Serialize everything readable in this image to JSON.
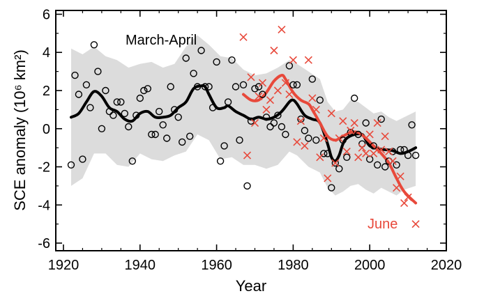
{
  "chart_data": {
    "type": "scatter",
    "xlabel": "Year",
    "ylabel": "SCE anomaly (10⁶ km²)",
    "xlim": [
      1918,
      2020
    ],
    "ylim": [
      -6.4,
      6.2
    ],
    "xticks": [
      1920,
      1940,
      1960,
      1980,
      2000,
      2020
    ],
    "xtick_labels": [
      "1920",
      "1940",
      "1960",
      "1980",
      "2000",
      "2020"
    ],
    "yticks": [
      -6,
      -4,
      -2,
      0,
      2,
      4,
      6
    ],
    "ytick_labels": [
      "-6",
      "-4",
      "-2",
      "0",
      "2",
      "4",
      "6"
    ],
    "grid": false,
    "legend": "none",
    "colors": {
      "march_april": "#000000",
      "june": "#e8493b",
      "band": "#dcdcdc"
    },
    "series": [
      {
        "name": "March-April",
        "marker": "circle",
        "points": [
          [
            1922,
            -1.9
          ],
          [
            1923,
            2.8
          ],
          [
            1924,
            1.8
          ],
          [
            1925,
            -1.6
          ],
          [
            1926,
            2.3
          ],
          [
            1927,
            1.1
          ],
          [
            1928,
            4.4
          ],
          [
            1929,
            3.0
          ],
          [
            1930,
            0.0
          ],
          [
            1931,
            2.0
          ],
          [
            1932,
            0.9
          ],
          [
            1933,
            0.7
          ],
          [
            1934,
            1.4
          ],
          [
            1935,
            1.4
          ],
          [
            1936,
            0.8
          ],
          [
            1937,
            0.1
          ],
          [
            1938,
            -1.7
          ],
          [
            1939,
            0.7
          ],
          [
            1940,
            1.6
          ],
          [
            1941,
            2.0
          ],
          [
            1942,
            2.1
          ],
          [
            1943,
            -0.3
          ],
          [
            1944,
            -0.3
          ],
          [
            1945,
            0.9
          ],
          [
            1946,
            0.2
          ],
          [
            1947,
            -0.5
          ],
          [
            1948,
            2.2
          ],
          [
            1949,
            1.0
          ],
          [
            1950,
            0.6
          ],
          [
            1951,
            -0.7
          ],
          [
            1952,
            3.7
          ],
          [
            1953,
            -0.4
          ],
          [
            1954,
            2.9
          ],
          [
            1955,
            2.2
          ],
          [
            1956,
            4.1
          ],
          [
            1957,
            2.2
          ],
          [
            1958,
            2.2
          ],
          [
            1959,
            1.1
          ],
          [
            1960,
            3.5
          ],
          [
            1961,
            -1.7
          ],
          [
            1962,
            -0.9
          ],
          [
            1963,
            1.4
          ],
          [
            1964,
            3.6
          ],
          [
            1965,
            2.2
          ],
          [
            1966,
            -0.6
          ],
          [
            1967,
            2.3
          ],
          [
            1968,
            -3.0
          ],
          [
            1969,
            0.4
          ],
          [
            1970,
            2.1
          ],
          [
            1971,
            2.2
          ],
          [
            1972,
            1.8
          ],
          [
            1973,
            0.6
          ],
          [
            1974,
            0.1
          ],
          [
            1975,
            0.3
          ],
          [
            1976,
            0.7
          ],
          [
            1977,
            0.1
          ],
          [
            1978,
            -0.3
          ],
          [
            1979,
            3.3
          ],
          [
            1980,
            2.3
          ],
          [
            1981,
            2.3
          ],
          [
            1982,
            0.5
          ],
          [
            1983,
            -0.1
          ],
          [
            1984,
            -0.5
          ],
          [
            1985,
            2.6
          ],
          [
            1986,
            -0.6
          ],
          [
            1987,
            1.5
          ],
          [
            1988,
            -1.3
          ],
          [
            1989,
            -1.3
          ],
          [
            1990,
            -3.1
          ],
          [
            1991,
            -1.8
          ],
          [
            1992,
            -2.1
          ],
          [
            1993,
            -0.6
          ],
          [
            1994,
            -1.5
          ],
          [
            1995,
            -0.2
          ],
          [
            1996,
            1.6
          ],
          [
            1997,
            -0.3
          ],
          [
            1998,
            -0.8
          ],
          [
            1999,
            0.3
          ],
          [
            2000,
            -1.6
          ],
          [
            2001,
            -0.9
          ],
          [
            2002,
            -1.9
          ],
          [
            2003,
            0.5
          ],
          [
            2004,
            -2.0
          ],
          [
            2005,
            -1.7
          ],
          [
            2006,
            -1.2
          ],
          [
            2007,
            -1.9
          ],
          [
            2008,
            -1.1
          ],
          [
            2009,
            -1.1
          ],
          [
            2010,
            -1.4
          ],
          [
            2011,
            0.2
          ],
          [
            2012,
            -1.4
          ]
        ],
        "smooth": [
          [
            1922,
            0.6
          ],
          [
            1924,
            0.8
          ],
          [
            1926,
            1.4
          ],
          [
            1928,
            1.95
          ],
          [
            1930,
            1.7
          ],
          [
            1932,
            1.1
          ],
          [
            1934,
            0.9
          ],
          [
            1936,
            0.5
          ],
          [
            1938,
            0.4
          ],
          [
            1940,
            0.8
          ],
          [
            1942,
            0.9
          ],
          [
            1944,
            0.6
          ],
          [
            1946,
            0.6
          ],
          [
            1948,
            0.7
          ],
          [
            1950,
            1.1
          ],
          [
            1952,
            1.4
          ],
          [
            1954,
            2.1
          ],
          [
            1956,
            2.25
          ],
          [
            1957,
            2.2
          ],
          [
            1958,
            1.8
          ],
          [
            1960,
            1.1
          ],
          [
            1962,
            1.1
          ],
          [
            1963,
            1.2
          ],
          [
            1965,
            0.9
          ],
          [
            1967,
            0.7
          ],
          [
            1969,
            0.5
          ],
          [
            1971,
            0.6
          ],
          [
            1973,
            0.5
          ],
          [
            1975,
            0.6
          ],
          [
            1977,
            0.9
          ],
          [
            1979,
            1.4
          ],
          [
            1980,
            1.5
          ],
          [
            1981,
            1.3
          ],
          [
            1983,
            0.7
          ],
          [
            1985,
            0.5
          ],
          [
            1987,
            0.3
          ],
          [
            1989,
            -0.8
          ],
          [
            1990,
            -1.5
          ],
          [
            1991,
            -1.7
          ],
          [
            1992,
            -1.4
          ],
          [
            1993,
            -0.8
          ],
          [
            1994,
            -0.5
          ],
          [
            1996,
            -0.3
          ],
          [
            1998,
            -0.3
          ],
          [
            1999,
            -0.6
          ],
          [
            2000,
            -0.9
          ],
          [
            2002,
            -1.05
          ],
          [
            2004,
            -1.1
          ],
          [
            2006,
            -1.15
          ],
          [
            2008,
            -1.3
          ],
          [
            2010,
            -1.2
          ],
          [
            2012,
            -1.0
          ]
        ],
        "band_upper": [
          [
            1922,
            4.2
          ],
          [
            1925,
            3.9
          ],
          [
            1928,
            4.3
          ],
          [
            1931,
            3.8
          ],
          [
            1934,
            3.6
          ],
          [
            1937,
            3.2
          ],
          [
            1940,
            3.4
          ],
          [
            1943,
            3.5
          ],
          [
            1946,
            3.2
          ],
          [
            1949,
            3.4
          ],
          [
            1952,
            4.3
          ],
          [
            1955,
            4.9
          ],
          [
            1958,
            4.4
          ],
          [
            1961,
            3.8
          ],
          [
            1964,
            3.7
          ],
          [
            1967,
            3.1
          ],
          [
            1970,
            2.8
          ],
          [
            1973,
            2.9
          ],
          [
            1976,
            3.2
          ],
          [
            1979,
            3.6
          ],
          [
            1981,
            3.4
          ],
          [
            1984,
            3.0
          ],
          [
            1987,
            2.6
          ],
          [
            1989,
            1.4
          ],
          [
            1991,
            0.9
          ],
          [
            1993,
            1.0
          ],
          [
            1995,
            1.5
          ],
          [
            1997,
            1.4
          ],
          [
            1999,
            1.1
          ],
          [
            2001,
            0.8
          ],
          [
            2003,
            0.9
          ],
          [
            2005,
            0.6
          ],
          [
            2007,
            0.4
          ],
          [
            2009,
            0.6
          ],
          [
            2012,
            0.9
          ]
        ],
        "band_lower": [
          [
            1922,
            -3.0
          ],
          [
            1925,
            -2.6
          ],
          [
            1928,
            -1.3
          ],
          [
            1931,
            -1.3
          ],
          [
            1934,
            -1.9
          ],
          [
            1937,
            -2.0
          ],
          [
            1940,
            -1.3
          ],
          [
            1943,
            -1.6
          ],
          [
            1946,
            -1.7
          ],
          [
            1949,
            -1.4
          ],
          [
            1952,
            -1.2
          ],
          [
            1955,
            -0.3
          ],
          [
            1958,
            -0.6
          ],
          [
            1961,
            -1.6
          ],
          [
            1964,
            -1.5
          ],
          [
            1967,
            -1.9
          ],
          [
            1970,
            -1.9
          ],
          [
            1973,
            -2.1
          ],
          [
            1976,
            -1.9
          ],
          [
            1979,
            -1.2
          ],
          [
            1981,
            -1.4
          ],
          [
            1984,
            -2.0
          ],
          [
            1987,
            -2.3
          ],
          [
            1989,
            -3.1
          ],
          [
            1991,
            -3.5
          ],
          [
            1993,
            -3.3
          ],
          [
            1995,
            -3.0
          ],
          [
            1997,
            -2.9
          ],
          [
            1999,
            -3.2
          ],
          [
            2001,
            -3.4
          ],
          [
            2003,
            -3.1
          ],
          [
            2005,
            -3.3
          ],
          [
            2007,
            -3.5
          ],
          [
            2009,
            -3.2
          ],
          [
            2012,
            -3.0
          ]
        ]
      },
      {
        "name": "June",
        "marker": "x",
        "points": [
          [
            1967,
            4.8
          ],
          [
            1968,
            -1.4
          ],
          [
            1969,
            2.7
          ],
          [
            1970,
            0.3
          ],
          [
            1971,
            1.7
          ],
          [
            1972,
            2.4
          ],
          [
            1973,
            1.0
          ],
          [
            1974,
            1.5
          ],
          [
            1975,
            4.1
          ],
          [
            1976,
            2.0
          ],
          [
            1977,
            5.2
          ],
          [
            1978,
            2.4
          ],
          [
            1979,
            1.8
          ],
          [
            1980,
            3.6
          ],
          [
            1981,
            -0.7
          ],
          [
            1982,
            0.4
          ],
          [
            1983,
            -0.9
          ],
          [
            1984,
            3.6
          ],
          [
            1985,
            1.6
          ],
          [
            1986,
            1.0
          ],
          [
            1987,
            -1.5
          ],
          [
            1988,
            -0.5
          ],
          [
            1989,
            -2.6
          ],
          [
            1990,
            0.8
          ],
          [
            1991,
            -1.8
          ],
          [
            1992,
            -0.5
          ],
          [
            1993,
            0.4
          ],
          [
            1994,
            -1.2
          ],
          [
            1995,
            -0.1
          ],
          [
            1996,
            0.3
          ],
          [
            1997,
            -1.5
          ],
          [
            1998,
            -1.0
          ],
          [
            1999,
            -1.3
          ],
          [
            2000,
            -0.3
          ],
          [
            2001,
            -1.3
          ],
          [
            2002,
            0.3
          ],
          [
            2003,
            -1.1
          ],
          [
            2004,
            -0.4
          ],
          [
            2005,
            -1.2
          ],
          [
            2006,
            -1.7
          ],
          [
            2007,
            -3.1
          ],
          [
            2008,
            -2.5
          ],
          [
            2009,
            -3.9
          ],
          [
            2010,
            -3.6
          ],
          [
            2012,
            -5.0
          ]
        ],
        "smooth": [
          [
            1967,
            1.8
          ],
          [
            1969,
            1.5
          ],
          [
            1971,
            1.5
          ],
          [
            1973,
            1.9
          ],
          [
            1975,
            2.5
          ],
          [
            1977,
            2.8
          ],
          [
            1978,
            2.6
          ],
          [
            1980,
            1.9
          ],
          [
            1982,
            1.5
          ],
          [
            1984,
            1.3
          ],
          [
            1985,
            1.0
          ],
          [
            1987,
            0.3
          ],
          [
            1989,
            -0.4
          ],
          [
            1991,
            -0.6
          ],
          [
            1993,
            -0.4
          ],
          [
            1995,
            -0.2
          ],
          [
            1997,
            -0.2
          ],
          [
            1999,
            -0.5
          ],
          [
            2001,
            -0.9
          ],
          [
            2003,
            -1.3
          ],
          [
            2005,
            -1.8
          ],
          [
            2007,
            -2.6
          ],
          [
            2009,
            -3.3
          ],
          [
            2012,
            -3.9
          ]
        ]
      }
    ],
    "annotations": [
      {
        "text": "March-April",
        "color": "#000000"
      },
      {
        "text": "June",
        "color": "#e8493b"
      }
    ]
  }
}
